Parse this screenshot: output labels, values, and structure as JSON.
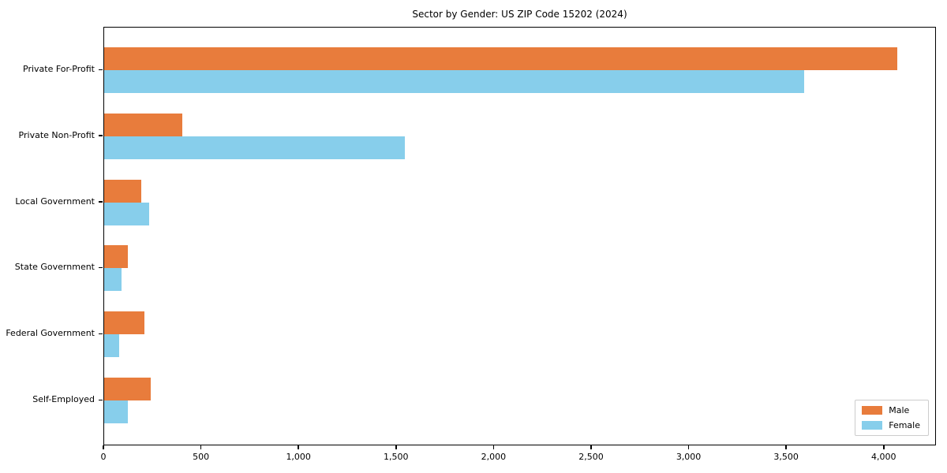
{
  "title": "Sector by Gender: US ZIP Code 15202 (2024)",
  "chart_data": {
    "type": "bar",
    "orientation": "horizontal",
    "title": "Sector by Gender: US ZIP Code 15202 (2024)",
    "xlabel": "",
    "ylabel": "",
    "categories": [
      "Private For-Profit",
      "Private Non-Profit",
      "Local Government",
      "State Government",
      "Federal Government",
      "Self-Employed"
    ],
    "series": [
      {
        "name": "Male",
        "color": "#E87C3C",
        "values": [
          4065,
          400,
          190,
          120,
          205,
          240
        ]
      },
      {
        "name": "Female",
        "color": "#87CEEB",
        "values": [
          3590,
          1540,
          230,
          90,
          75,
          120
        ]
      }
    ],
    "xlim": [
      0,
      4268
    ],
    "x_ticks": [
      0,
      500,
      1000,
      1500,
      2000,
      2500,
      3000,
      3500,
      4000
    ],
    "x_tick_labels": [
      "0",
      "500",
      "1,000",
      "1,500",
      "2,000",
      "2,500",
      "3,000",
      "3,500",
      "4,000"
    ],
    "grid": false,
    "legend_position": "lower-right",
    "axis_color": "#000000",
    "background_color": "#ffffff"
  },
  "legend": {
    "items": [
      {
        "label": "Male",
        "color": "#E87C3C"
      },
      {
        "label": "Female",
        "color": "#87CEEB"
      }
    ]
  }
}
